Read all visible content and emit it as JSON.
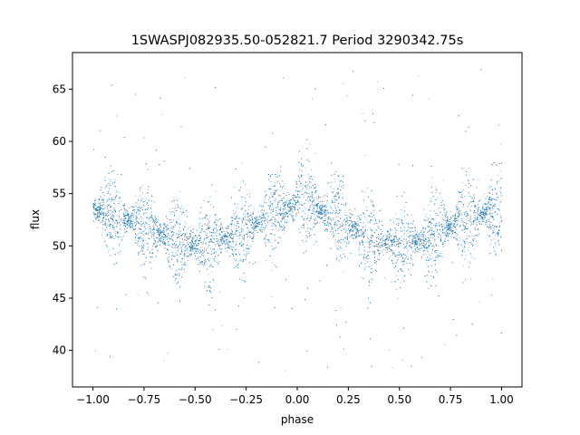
{
  "chart_data": {
    "type": "scatter",
    "title": "1SWASPJ082935.50-052821.7 Period 3290342.75s",
    "xlabel": "phase",
    "ylabel": "flux",
    "xlim": [
      -1.1,
      1.1
    ],
    "ylim": [
      36.5,
      68.5
    ],
    "x_ticks": [
      -1.0,
      -0.75,
      -0.5,
      -0.25,
      0.0,
      0.25,
      0.5,
      0.75,
      1.0
    ],
    "x_tick_labels": [
      "−1.00",
      "−0.75",
      "−0.50",
      "−0.25",
      "0.00",
      "0.25",
      "0.50",
      "0.75",
      "1.00"
    ],
    "y_ticks": [
      40,
      45,
      50,
      55,
      60,
      65
    ],
    "y_tick_labels": [
      "40",
      "45",
      "50",
      "55",
      "60",
      "65"
    ],
    "grid": false,
    "point_color": "#1f77b4",
    "series": [
      {
        "x_range": [
          -1.0,
          1.0
        ],
        "trend": {
          "phase": [
            -1.0,
            -0.9,
            -0.75,
            -0.6,
            -0.5,
            -0.4,
            -0.25,
            -0.1,
            0.0,
            0.1,
            0.25,
            0.4,
            0.5,
            0.6,
            0.75,
            0.9,
            1.0
          ],
          "median_flux": [
            53.5,
            53.0,
            52.0,
            50.5,
            50.0,
            50.5,
            51.5,
            53.5,
            54.0,
            53.5,
            52.0,
            50.5,
            50.0,
            50.5,
            52.0,
            53.0,
            53.5
          ],
          "spread": 2.4
        },
        "outlier_flux_range": [
          38.0,
          67.0
        ]
      }
    ]
  }
}
